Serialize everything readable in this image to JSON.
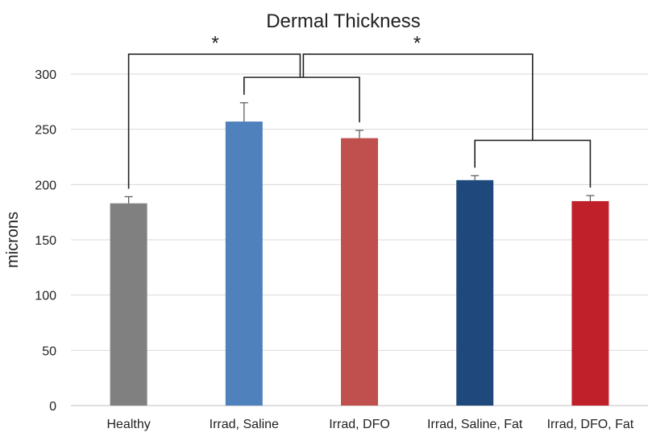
{
  "chart_data": {
    "type": "bar",
    "title": "Dermal Thickness",
    "xlabel": "",
    "ylabel": "microns",
    "ylim": [
      0,
      300
    ],
    "yticks": [
      0,
      50,
      100,
      150,
      200,
      250,
      300
    ],
    "grid": true,
    "legend": "none",
    "categories": [
      "Healthy",
      "Irrad, Saline",
      "Irrad, DFO",
      "Irrad, Saline, Fat",
      "Irrad, DFO, Fat"
    ],
    "values": [
      183,
      257,
      242,
      204,
      185
    ],
    "errors": [
      6,
      17,
      7,
      4,
      5
    ],
    "colors": [
      "#808080",
      "#4f81bd",
      "#c0504d",
      "#1f497d",
      "#c0202a"
    ],
    "significance": [
      {
        "label": "*",
        "between": [
          "Healthy",
          "Irrad, Saline + Irrad, DFO"
        ]
      },
      {
        "label": "*",
        "between": [
          "Irrad, Saline + Irrad, DFO",
          "Irrad, Saline, Fat + Irrad, DFO, Fat"
        ]
      }
    ]
  }
}
